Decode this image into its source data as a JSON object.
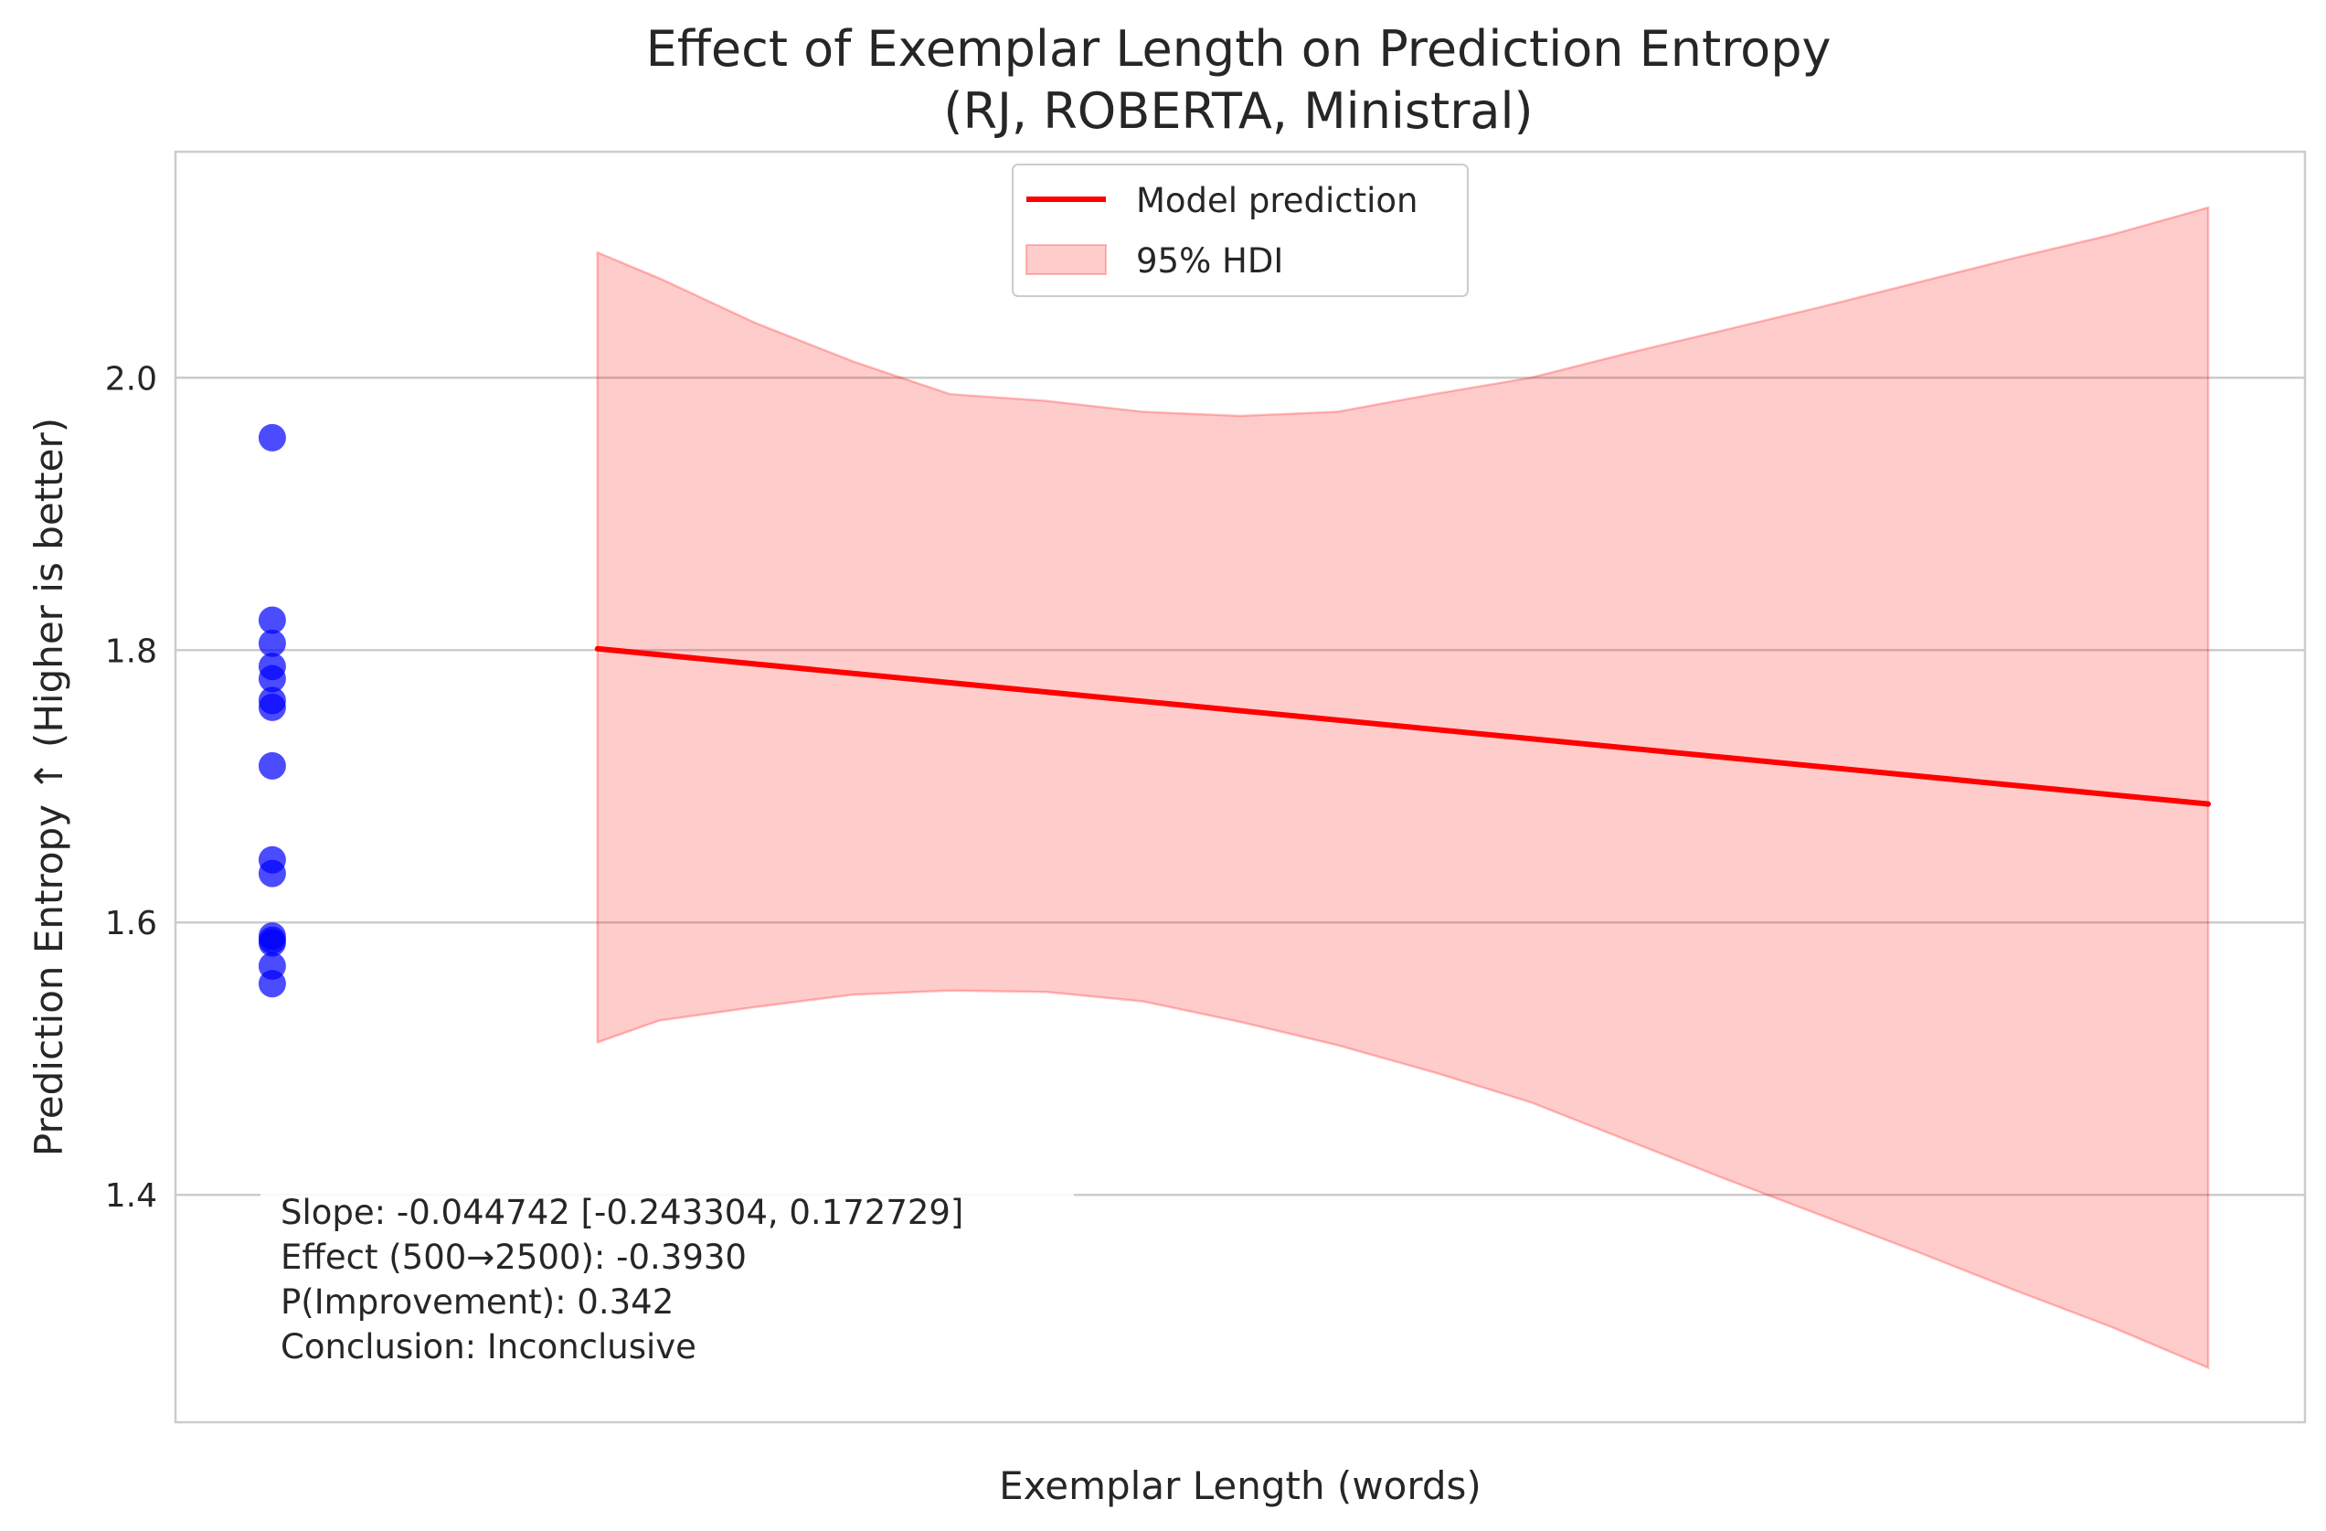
{
  "chart_data": {
    "type": "scatter",
    "title": "Effect of Exemplar Length on Prediction Entropy",
    "subtitle": "(RJ, ROBERTA, Ministral)",
    "xlabel": "Exemplar Length (words)",
    "ylabel": "Prediction Entropy ↑ (Higher is better)",
    "ylim": [
      1.233,
      2.166
    ],
    "xlim": [
      -0.05,
      1.05
    ],
    "yticks": [
      1.4,
      1.6,
      1.8,
      2.0
    ],
    "ytick_labels": [
      "1.4",
      "1.6",
      "1.8",
      "2.0"
    ],
    "grid": "horizontal",
    "legend_position": "upper center",
    "series": [
      {
        "name": "",
        "kind": "scatter",
        "color": "#0000ff",
        "x": [
          0,
          0,
          0,
          0,
          0,
          0,
          0,
          0,
          0,
          0,
          0,
          0,
          0,
          0,
          0
        ],
        "y": [
          1.956,
          1.822,
          1.805,
          1.788,
          1.779,
          1.763,
          1.758,
          1.715,
          1.646,
          1.636,
          1.59,
          1.587,
          1.585,
          1.568,
          1.555
        ]
      },
      {
        "name": "Model prediction",
        "kind": "line",
        "color": "#ff0000",
        "x": [
          0.168,
          1.0
        ],
        "y": [
          1.801,
          1.687
        ]
      },
      {
        "name": "95% HDI",
        "kind": "band",
        "color": "#ff0000",
        "x": [
          0.168,
          0.2,
          0.25,
          0.3,
          0.35,
          0.4,
          0.45,
          0.5,
          0.55,
          0.6,
          0.65,
          0.7,
          0.75,
          0.8,
          0.85,
          0.9,
          0.95,
          1.0
        ],
        "upper": [
          2.092,
          2.073,
          2.04,
          2.012,
          1.988,
          1.983,
          1.975,
          1.972,
          1.975,
          1.988,
          2.0,
          2.018,
          2.035,
          2.052,
          2.07,
          2.088,
          2.105,
          2.125
        ],
        "lower": [
          1.512,
          1.528,
          1.538,
          1.547,
          1.55,
          1.549,
          1.542,
          1.527,
          1.51,
          1.49,
          1.468,
          1.44,
          1.412,
          1.385,
          1.358,
          1.33,
          1.303,
          1.273
        ]
      }
    ],
    "legend": [
      {
        "label": "Model prediction",
        "type": "line",
        "color": "#ff0000"
      },
      {
        "label": "95% HDI",
        "type": "band",
        "color": "#ff0000"
      }
    ],
    "annotation": [
      "Slope: -0.044742 [-0.243304, 0.172729]",
      "Effect (500→2500): -0.3930",
      "P(Improvement): 0.342",
      "Conclusion: Inconclusive"
    ]
  }
}
